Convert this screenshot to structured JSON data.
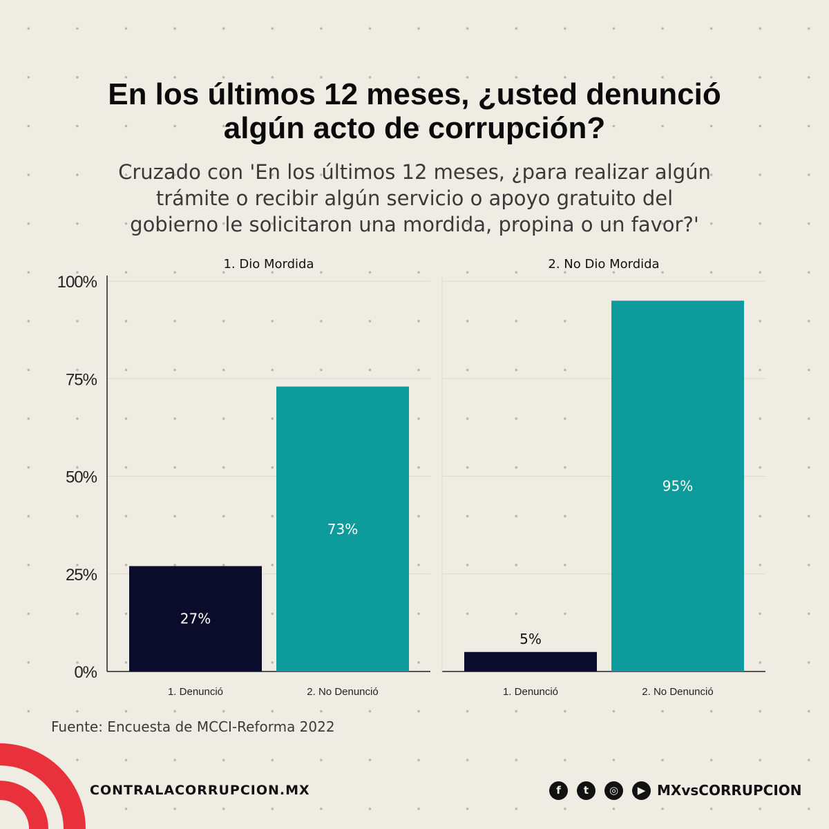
{
  "title": {
    "line1": "En los últimos 12 meses, ¿usted denunció",
    "line2": "algún acto de corrupción?"
  },
  "subtitle": {
    "line1": "Cruzado con 'En los últimos 12 meses, ¿para realizar algún",
    "line2": "trámite o recibir algún servicio o apoyo gratuito del",
    "line3": "gobierno le solicitaron una mordida, propina o un favor?'"
  },
  "chart_data": {
    "type": "bar",
    "ylim": [
      0,
      100
    ],
    "y_ticks": [
      {
        "value": 0,
        "label": "0%"
      },
      {
        "value": 25,
        "label": "25%"
      },
      {
        "value": 50,
        "label": "50%"
      },
      {
        "value": 75,
        "label": "75%"
      },
      {
        "value": 100,
        "label": "100%"
      }
    ],
    "categories": [
      "1. Denunció",
      "2. No Denunció"
    ],
    "panels": [
      {
        "name": "1. Dio Mordida",
        "values": [
          27,
          73
        ],
        "labels": [
          "27%",
          "73%"
        ]
      },
      {
        "name": "2. No Dio Mordida",
        "values": [
          5,
          95
        ],
        "labels": [
          "5%",
          "95%"
        ]
      }
    ],
    "colors": [
      "#0b0b2b",
      "#0e9b9b"
    ],
    "grid": true
  },
  "source": "Fuente: Encuesta de MCCI-Reforma 2022",
  "footer": {
    "site": "CONTRALACORRUPCION.MX",
    "handle": "MXvsCORRUPCION",
    "icons": [
      "facebook-icon",
      "twitter-icon",
      "instagram-icon",
      "youtube-icon"
    ]
  },
  "colors": {
    "logo_red": "#e8313a",
    "background": "#efece3"
  }
}
